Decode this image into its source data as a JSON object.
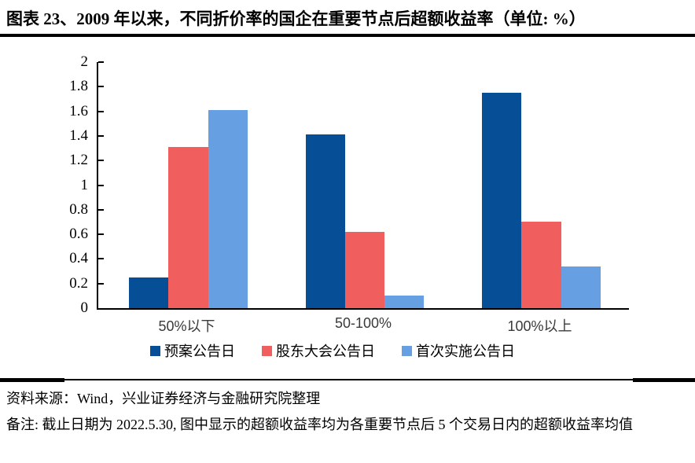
{
  "title": "图表 23、2009 年以来，不同折价率的国企在重要节点后超额收益率（单位: %）",
  "chart_data": {
    "type": "bar",
    "categories": [
      "50%以下",
      "50-100%",
      "100%以上"
    ],
    "series": [
      {
        "name": "预案公告日",
        "color": "#064F97",
        "values": [
          0.25,
          1.41,
          1.75
        ]
      },
      {
        "name": "股东大会公告日",
        "color": "#F05E5E",
        "values": [
          1.31,
          0.62,
          0.7
        ]
      },
      {
        "name": "首次实施公告日",
        "color": "#66A0E2",
        "values": [
          1.61,
          0.1,
          0.34
        ]
      }
    ],
    "title": "",
    "xlabel": "",
    "ylabel": "",
    "ylim": [
      0,
      2
    ],
    "yticks": [
      "2",
      "1.8",
      "1.6",
      "1.4",
      "1.2",
      "1",
      "0.8",
      "0.6",
      "0.4",
      "0.2",
      "0"
    ],
    "grid": false,
    "legend_position": "bottom"
  },
  "footer": {
    "source": "资料来源：Wind，兴业证券经济与金融研究院整理",
    "note": "备注: 截止日期为 2022.5.30, 图中显示的超额收益率均为各重要节点后 5 个交易日内的超额收益率均值"
  }
}
